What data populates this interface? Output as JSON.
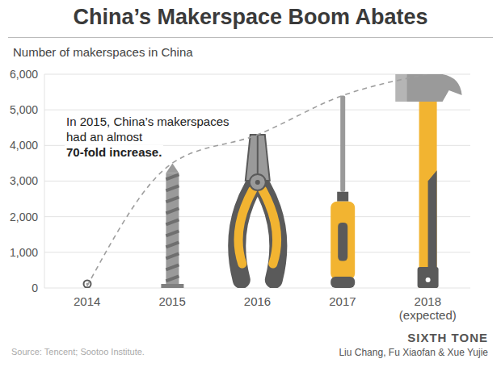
{
  "chart_data": {
    "type": "line",
    "title": "China’s Makerspace Boom Abates",
    "y_label": "Number of makerspaces in China",
    "annotation": "In 2015, China’s makerspaces had an almost 70-fold increase.",
    "source": "Source: Tencent; Sootoo Institute.",
    "publisher": "SIXTH TONE",
    "credits": "Liu Chang, Fu Xiaofan & Xue Yujie",
    "categories": [
      "2014",
      "2015",
      "2016",
      "2017",
      "2018 (expected)"
    ],
    "values": [
      50,
      3500,
      4300,
      5400,
      6000
    ],
    "color": "#9e9e9e",
    "line_style": "dashed",
    "ylim": [
      0,
      6000
    ],
    "yticks": [
      0,
      {
        "value": 1000,
        "label": "1,000"
      },
      {
        "value": 2000,
        "label": "2,000"
      },
      {
        "value": 3000,
        "label": "3,000"
      },
      {
        "value": 4000,
        "label": "4,000"
      },
      {
        "value": 5000,
        "label": "5,000"
      },
      {
        "value": 6000,
        "label": "6,000"
      }
    ],
    "grid": true
  }
}
